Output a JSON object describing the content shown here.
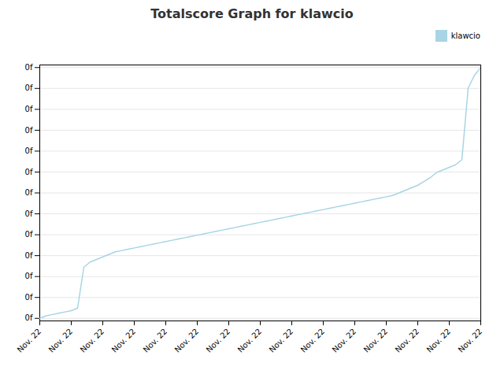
{
  "chart_data": {
    "type": "line",
    "title": "Totalscore Graph for klawcio",
    "x": [
      0,
      1,
      2,
      3,
      4,
      5,
      6,
      7,
      8,
      9,
      10,
      11,
      12,
      13,
      14,
      15,
      16,
      17,
      18,
      19,
      20,
      21,
      22,
      23,
      24,
      25,
      26,
      27,
      28,
      29,
      30,
      31,
      32,
      33,
      34,
      35,
      36,
      37,
      38,
      39,
      40,
      41,
      42,
      43,
      44,
      45,
      46,
      47,
      48,
      49,
      50,
      51,
      52,
      53,
      54,
      55,
      56,
      57,
      58,
      59,
      60,
      61,
      62,
      63,
      64,
      65,
      66,
      67,
      68,
      69,
      70
    ],
    "series": [
      {
        "name": "klawcio",
        "color": "#a8d4e6",
        "values": [
          0.0,
          0.01,
          0.015,
          0.02,
          0.025,
          0.03,
          0.04,
          0.2,
          0.22,
          0.23,
          0.24,
          0.25,
          0.26,
          0.265,
          0.27,
          0.275,
          0.28,
          0.285,
          0.29,
          0.295,
          0.3,
          0.305,
          0.31,
          0.315,
          0.32,
          0.325,
          0.33,
          0.335,
          0.34,
          0.345,
          0.35,
          0.355,
          0.36,
          0.365,
          0.37,
          0.375,
          0.38,
          0.385,
          0.39,
          0.395,
          0.4,
          0.405,
          0.41,
          0.415,
          0.42,
          0.425,
          0.43,
          0.435,
          0.44,
          0.445,
          0.45,
          0.455,
          0.46,
          0.465,
          0.47,
          0.475,
          0.48,
          0.49,
          0.5,
          0.51,
          0.52,
          0.535,
          0.55,
          0.57,
          0.58,
          0.59,
          0.6,
          0.62,
          0.9,
          0.95,
          0.98
        ]
      }
    ],
    "xlim": [
      0,
      70
    ],
    "xticks": [
      {
        "value": 0,
        "label": "Nov. 22"
      },
      {
        "value": 5,
        "label": "Nov. 22"
      },
      {
        "value": 10,
        "label": "Nov. 22"
      },
      {
        "value": 15,
        "label": "Nov. 22"
      },
      {
        "value": 20,
        "label": "Nov. 22"
      },
      {
        "value": 25,
        "label": "Nov. 22"
      },
      {
        "value": 30,
        "label": "Nov. 22"
      },
      {
        "value": 35,
        "label": "Nov. 22"
      },
      {
        "value": 40,
        "label": "Nov. 22"
      },
      {
        "value": 45,
        "label": "Nov. 22"
      },
      {
        "value": 50,
        "label": "Nov. 22"
      },
      {
        "value": 55,
        "label": "Nov. 22"
      },
      {
        "value": 60,
        "label": "Nov. 22"
      },
      {
        "value": 65,
        "label": "Nov. 22"
      },
      {
        "value": 70,
        "label": "Nov. 22"
      }
    ],
    "ylim": [
      -0.01,
      0.99
    ],
    "yticks": [
      {
        "value": 0.0,
        "label": "0f"
      },
      {
        "value": 0.08166666666666667,
        "label": "0f"
      },
      {
        "value": 0.16333333333333333,
        "label": "0f"
      },
      {
        "value": 0.245,
        "label": "0f"
      },
      {
        "value": 0.32666666666666666,
        "label": "0f"
      },
      {
        "value": 0.4083333333333333,
        "label": "0f"
      },
      {
        "value": 0.49,
        "label": "0f"
      },
      {
        "value": 0.5716666666666667,
        "label": "0f"
      },
      {
        "value": 0.6533333333333333,
        "label": "0f"
      },
      {
        "value": 0.735,
        "label": "0f"
      },
      {
        "value": 0.8166666666666667,
        "label": "0f"
      },
      {
        "value": 0.8983333333333333,
        "label": "0f"
      },
      {
        "value": 0.98,
        "label": "0f"
      }
    ],
    "grid": "y",
    "legend": "upper right"
  }
}
